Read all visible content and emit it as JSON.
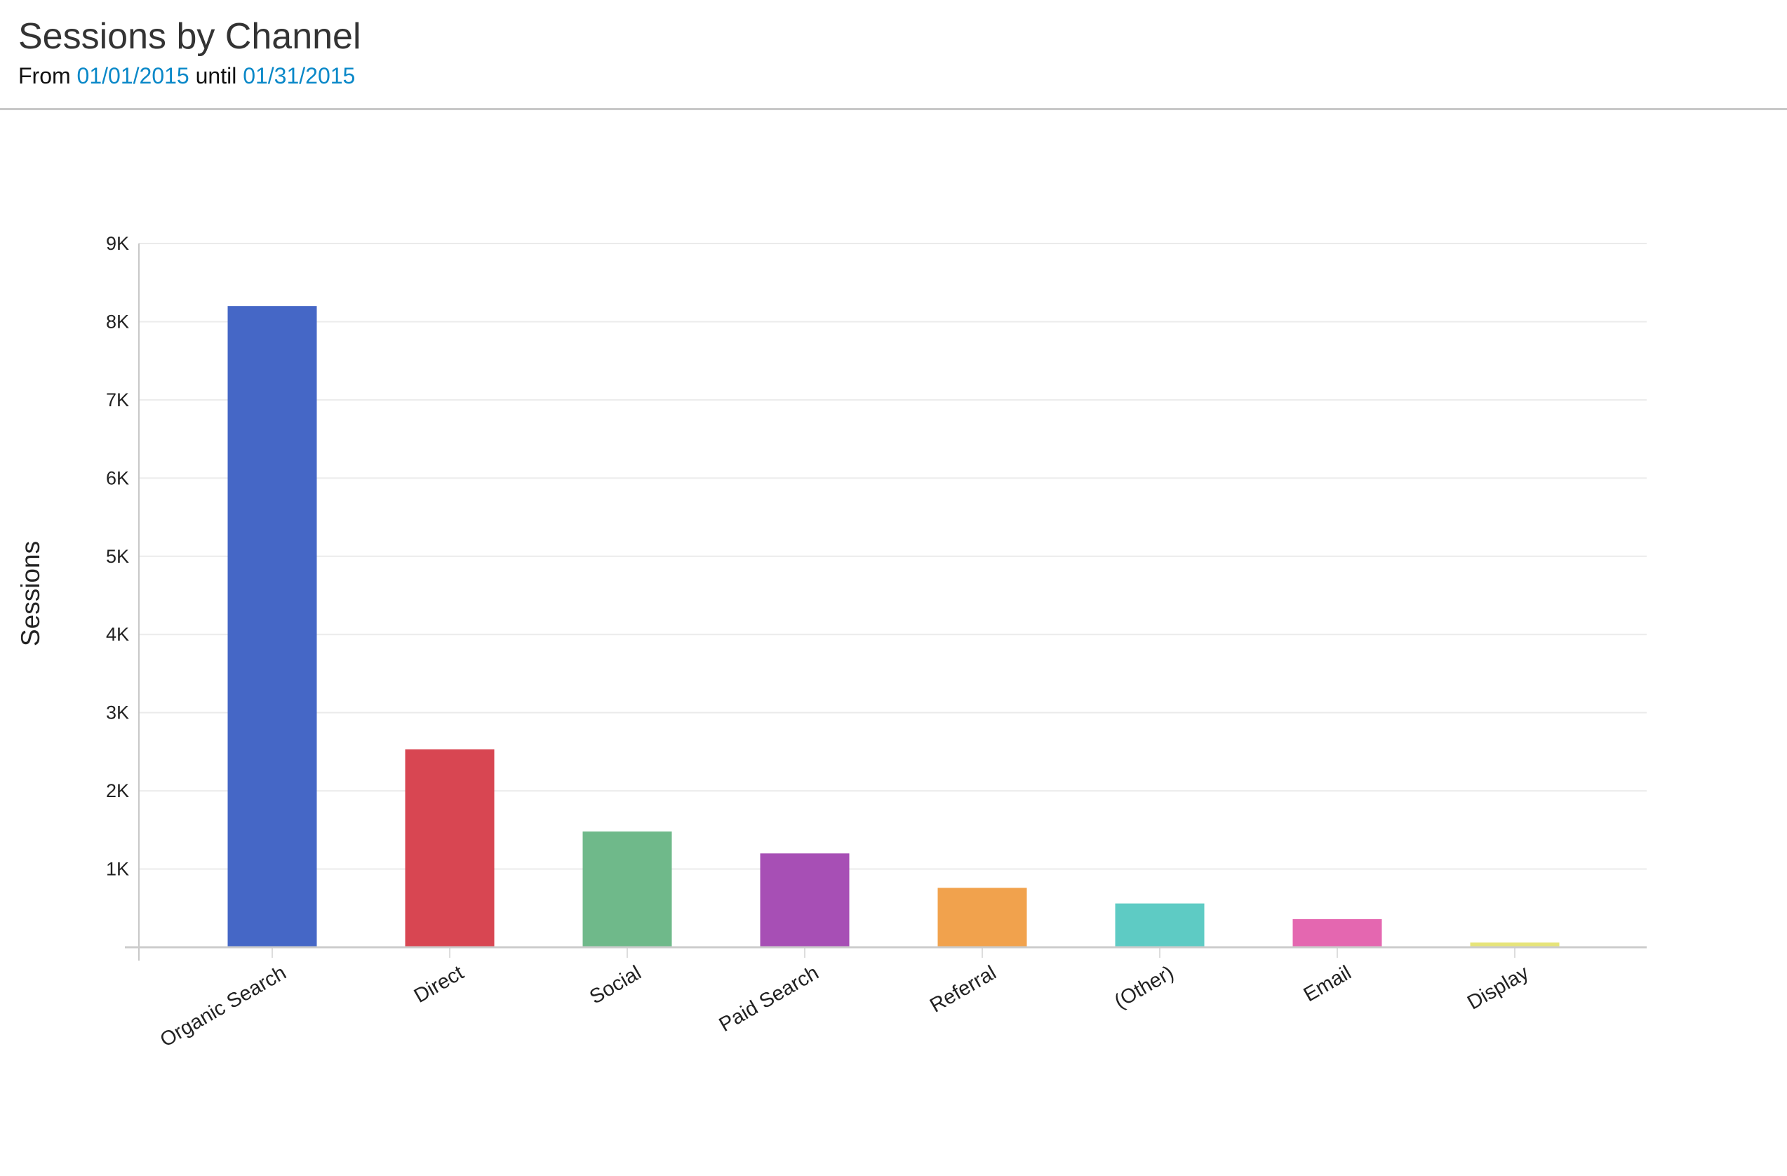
{
  "header": {
    "title": "Sessions by Channel",
    "from_label": "From",
    "from_date": "01/01/2015",
    "until_label": "until",
    "until_date": "01/31/2015"
  },
  "chart_data": {
    "type": "bar",
    "title": "",
    "xlabel": "",
    "ylabel": "Sessions",
    "ylim": [
      0,
      9000
    ],
    "grid": true,
    "yticks": [
      1000,
      2000,
      3000,
      4000,
      5000,
      6000,
      7000,
      8000,
      9000
    ],
    "ytick_labels": [
      "1K",
      "2K",
      "3K",
      "4K",
      "5K",
      "6K",
      "7K",
      "8K",
      "9K"
    ],
    "categories": [
      "Organic Search",
      "Direct",
      "Social",
      "Paid Search",
      "Referral",
      "(Other)",
      "Email",
      "Display"
    ],
    "values": [
      8200,
      2530,
      1480,
      1200,
      760,
      560,
      360,
      60
    ],
    "colors": [
      "#4567c6",
      "#d84652",
      "#6fb98a",
      "#a74fb5",
      "#f1a24d",
      "#5ecbc4",
      "#e467b0",
      "#e6e47a"
    ]
  }
}
